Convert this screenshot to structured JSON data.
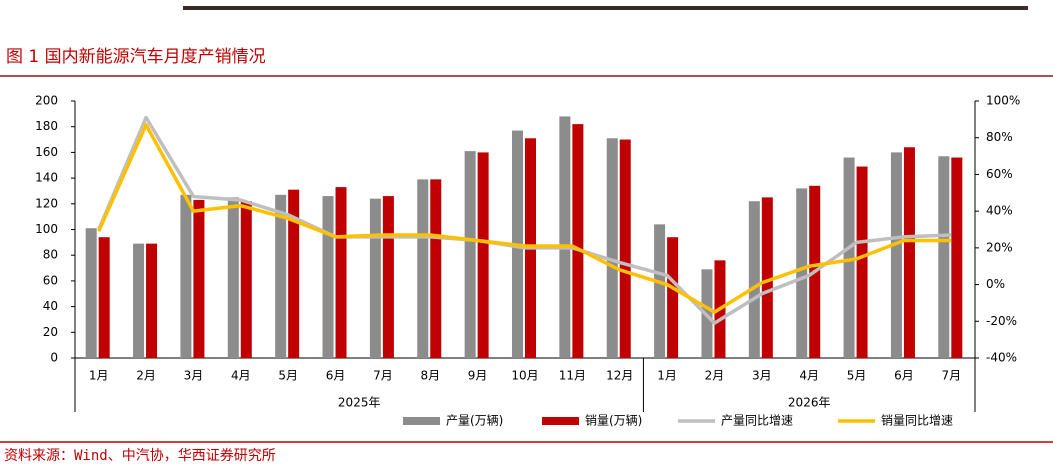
{
  "chart_data": {
    "type": "bar",
    "title": "图 1 国内新能源汽车月度产销情况",
    "source": "资料来源：Wind、中汽协，华西证券研究所",
    "categories": [
      "1月",
      "2月",
      "3月",
      "4月",
      "5月",
      "6月",
      "7月",
      "8月",
      "9月",
      "10月",
      "11月",
      "12月",
      "1月",
      "2月",
      "3月",
      "4月",
      "5月",
      "6月",
      "7月"
    ],
    "groups": [
      {
        "label": "2025年",
        "count": 12
      },
      {
        "label": "2026年",
        "count": 7
      }
    ],
    "series": [
      {
        "name": "产量(万辆)",
        "type": "bar",
        "color": "#8c8c8c",
        "values": [
          101,
          89,
          127,
          125,
          127,
          126,
          124,
          139,
          161,
          177,
          188,
          171,
          104,
          69,
          122,
          132,
          156,
          160,
          157
        ]
      },
      {
        "name": "销量(万辆)",
        "type": "bar",
        "color": "#c00000",
        "values": [
          94,
          89,
          123,
          122,
          131,
          133,
          126,
          139,
          160,
          171,
          182,
          170,
          94,
          76,
          125,
          134,
          149,
          164,
          156
        ]
      },
      {
        "name": "产量同比增速",
        "type": "line",
        "axis": "y2",
        "color": "#bfbfbf",
        "values": [
          30,
          91,
          48,
          46,
          38,
          26,
          26,
          26,
          24,
          20,
          20,
          12,
          5,
          -21,
          -5,
          5,
          23,
          26,
          27
        ]
      },
      {
        "name": "销量同比增速",
        "type": "line",
        "axis": "y2",
        "color": "#ffc000",
        "values": [
          29,
          87,
          40,
          43,
          36,
          26,
          27,
          27,
          24,
          21,
          21,
          8,
          0,
          -15,
          1,
          10,
          14,
          24,
          24
        ]
      }
    ],
    "ylim": [
      0,
      200
    ],
    "yticks": [
      0,
      20,
      40,
      60,
      80,
      100,
      120,
      140,
      160,
      180,
      200
    ],
    "y2lim": [
      -40,
      100
    ],
    "y2ticks": [
      {
        "value": -40,
        "label": "-40%"
      },
      {
        "value": -20,
        "label": "-20%"
      },
      {
        "value": 0,
        "label": "0%"
      },
      {
        "value": 20,
        "label": "20%"
      },
      {
        "value": 40,
        "label": "40%"
      },
      {
        "value": 60,
        "label": "60%"
      },
      {
        "value": 80,
        "label": "80%"
      },
      {
        "value": 100,
        "label": "100%"
      }
    ],
    "grid": false
  }
}
